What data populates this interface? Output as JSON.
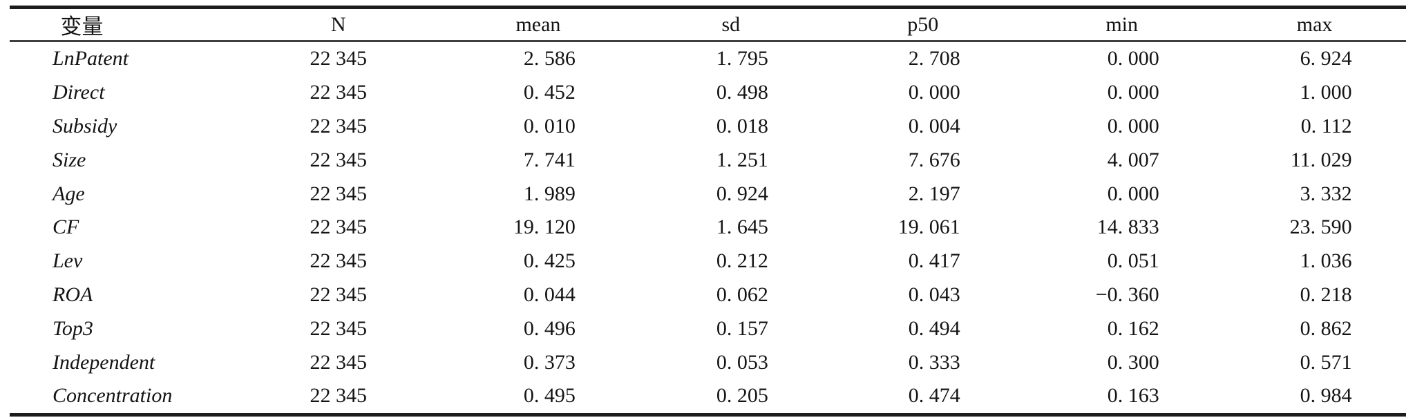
{
  "table": {
    "title_semantic": "descriptive-statistics",
    "columns": [
      "变量",
      "N",
      "mean",
      "sd",
      "p50",
      "min",
      "max"
    ],
    "rows": [
      {
        "variable": "LnPatent",
        "values": [
          "22 345",
          "2. 586",
          "1. 795",
          "2. 708",
          "0. 000",
          "6. 924"
        ]
      },
      {
        "variable": "Direct",
        "values": [
          "22 345",
          "0. 452",
          "0. 498",
          "0. 000",
          "0. 000",
          "1. 000"
        ]
      },
      {
        "variable": "Subsidy",
        "values": [
          "22 345",
          "0. 010",
          "0. 018",
          "0. 004",
          "0. 000",
          "0. 112"
        ]
      },
      {
        "variable": "Size",
        "values": [
          "22 345",
          "7. 741",
          "1. 251",
          "7. 676",
          "4. 007",
          "11. 029"
        ]
      },
      {
        "variable": "Age",
        "values": [
          "22 345",
          "1. 989",
          "0. 924",
          "2. 197",
          "0. 000",
          "3. 332"
        ]
      },
      {
        "variable": "CF",
        "values": [
          "22 345",
          "19. 120",
          "1. 645",
          "19. 061",
          "14. 833",
          "23. 590"
        ]
      },
      {
        "variable": "Lev",
        "values": [
          "22 345",
          "0. 425",
          "0. 212",
          "0. 417",
          "0. 051",
          "1. 036"
        ]
      },
      {
        "variable": "ROA",
        "values": [
          "22 345",
          "0. 044",
          "0. 062",
          "0. 043",
          "−0. 360",
          "0. 218"
        ]
      },
      {
        "variable": "Top3",
        "values": [
          "22 345",
          "0. 496",
          "0. 157",
          "0. 494",
          "0. 162",
          "0. 862"
        ]
      },
      {
        "variable": "Independent",
        "values": [
          "22 345",
          "0. 373",
          "0. 053",
          "0. 333",
          "0. 300",
          "0. 571"
        ]
      },
      {
        "variable": "Concentration",
        "values": [
          "22 345",
          "0. 495",
          "0. 205",
          "0. 474",
          "0. 163",
          "0. 984"
        ]
      }
    ],
    "colors": {
      "text": "#141414",
      "rule_heavy": "#1c1c1c",
      "rule_light": "#3f3f3f",
      "background": "#ffffff"
    }
  }
}
